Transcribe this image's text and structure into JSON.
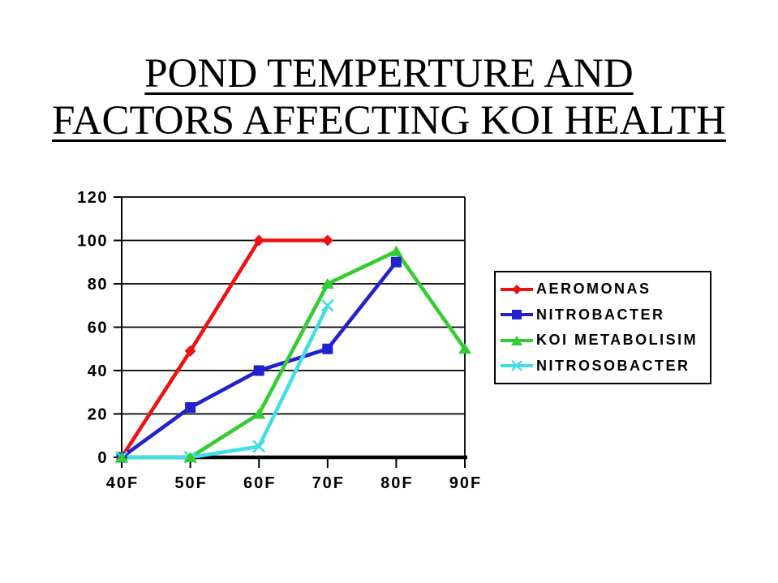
{
  "slide": {
    "background": "#FFFFFF"
  },
  "title": {
    "line1": "POND TEMPERTURE AND",
    "line2": "FACTORS AFFECTING KOI HEALTH",
    "underlined": true,
    "color": "#000000"
  },
  "chart_data": {
    "type": "line",
    "title": "POND TEMPERTURE AND FACTORS AFFECTING KOI HEALTH",
    "xlabel": "",
    "ylabel": "",
    "categories": [
      "40F",
      "50F",
      "60F",
      "70F",
      "80F",
      "90F"
    ],
    "ylim": [
      0,
      120
    ],
    "yticks": [
      0,
      20,
      40,
      60,
      80,
      100,
      120
    ],
    "grid": true,
    "axis_color": "#000000",
    "plot_background": "#FFFFFF",
    "legend": {
      "position": "right",
      "border_color": "#000000",
      "background": "#FFFFFF"
    },
    "series": [
      {
        "name": "AEROMONAS",
        "color": "#EE1111",
        "marker": "diamond",
        "values": [
          0,
          49,
          100,
          100,
          null,
          null
        ]
      },
      {
        "name": "NITROBACTER",
        "color": "#2222CC",
        "marker": "square",
        "values": [
          0,
          23,
          40,
          50,
          90,
          null
        ]
      },
      {
        "name": "KOI METABOLISIM",
        "color": "#33CC33",
        "marker": "triangle",
        "values": [
          0,
          0,
          20,
          80,
          95,
          50
        ]
      },
      {
        "name": "NITROSOBACTER",
        "color": "#44DDE6",
        "marker": "x",
        "values": [
          0,
          0,
          5,
          70,
          null,
          null
        ]
      }
    ]
  }
}
